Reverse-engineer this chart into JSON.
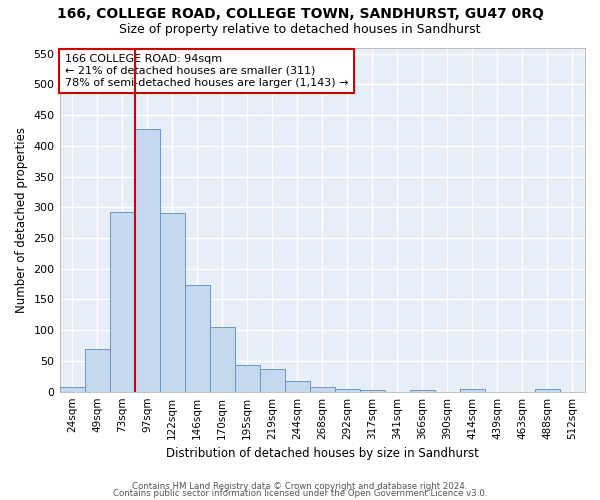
{
  "title": "166, COLLEGE ROAD, COLLEGE TOWN, SANDHURST, GU47 0RQ",
  "subtitle": "Size of property relative to detached houses in Sandhurst",
  "xlabel": "Distribution of detached houses by size in Sandhurst",
  "ylabel": "Number of detached properties",
  "bar_color": "#c5d8f0",
  "bar_edge_color": "#6699cc",
  "background_color": "#e8eef8",
  "grid_color": "#ffffff",
  "categories": [
    "24sqm",
    "49sqm",
    "73sqm",
    "97sqm",
    "122sqm",
    "146sqm",
    "170sqm",
    "195sqm",
    "219sqm",
    "244sqm",
    "268sqm",
    "292sqm",
    "317sqm",
    "341sqm",
    "366sqm",
    "390sqm",
    "414sqm",
    "439sqm",
    "463sqm",
    "488sqm",
    "512sqm"
  ],
  "values": [
    8,
    70,
    292,
    428,
    290,
    174,
    105,
    44,
    37,
    17,
    8,
    5,
    3,
    0,
    3,
    0,
    5,
    0,
    0,
    4,
    0
  ],
  "ylim": [
    0,
    560
  ],
  "yticks": [
    0,
    50,
    100,
    150,
    200,
    250,
    300,
    350,
    400,
    450,
    500,
    550
  ],
  "vline_color": "#cc0000",
  "vline_x_index": 3,
  "annotation_line1": "166 COLLEGE ROAD: 94sqm",
  "annotation_line2": "← 21% of detached houses are smaller (311)",
  "annotation_line3": "78% of semi-detached houses are larger (1,143) →",
  "annotation_box_color": "#ffffff",
  "annotation_box_edge": "#cc0000",
  "footer1": "Contains HM Land Registry data © Crown copyright and database right 2024.",
  "footer2": "Contains public sector information licensed under the Open Government Licence v3.0."
}
